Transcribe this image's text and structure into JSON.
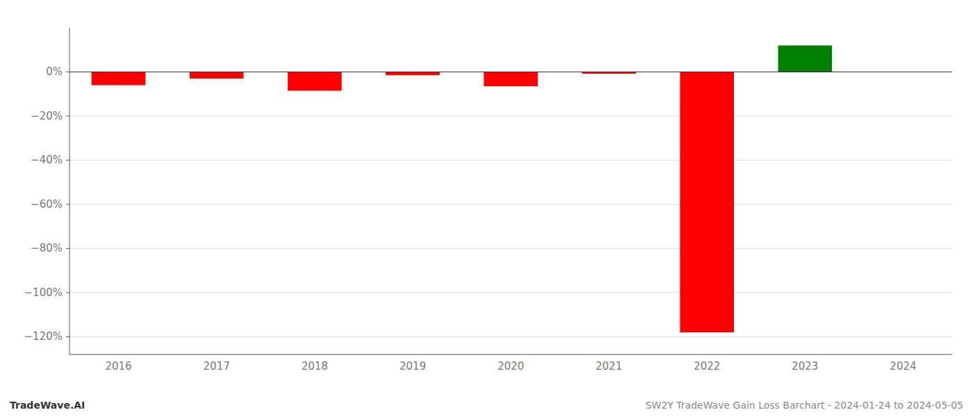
{
  "chart_data": {
    "type": "bar",
    "title": "SW2Y TradeWave Gain Loss Barchart - 2024-01-24 to 2024-05-05",
    "annotations": [
      "TradeWave.AI"
    ],
    "categories": [
      "2016",
      "2017",
      "2018",
      "2019",
      "2020",
      "2021",
      "2022",
      "2023",
      "2024"
    ],
    "values": [
      -6.0,
      -3.0,
      -8.5,
      -1.5,
      -6.5,
      -0.8,
      -118.0,
      12.0,
      null
    ],
    "colors": [
      "#ff0000",
      "#ff0000",
      "#ff0000",
      "#ff0000",
      "#ff0000",
      "#ff0000",
      "#ff0000",
      "#008000",
      null
    ],
    "ylim": [
      -128,
      20
    ],
    "yticks": [
      {
        "value": 0,
        "label": "0%"
      },
      {
        "value": -20,
        "label": "−20%"
      },
      {
        "value": -40,
        "label": "−40%"
      },
      {
        "value": -60,
        "label": "−60%"
      },
      {
        "value": -80,
        "label": "−80%"
      },
      {
        "value": -100,
        "label": "−100%"
      },
      {
        "value": -120,
        "label": "−120%"
      }
    ],
    "grid": true
  }
}
